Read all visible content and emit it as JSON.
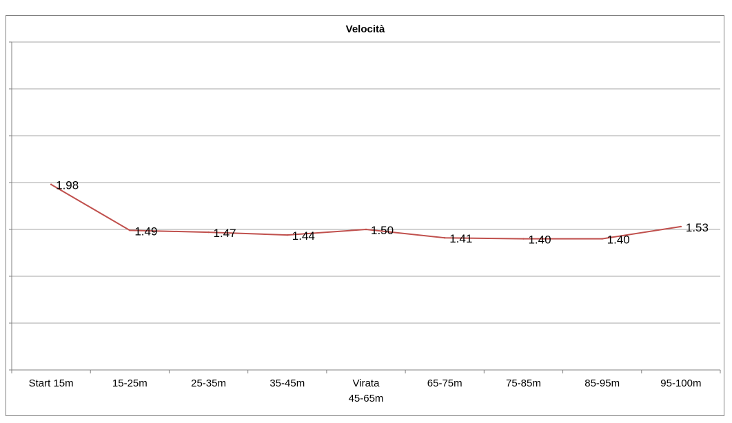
{
  "chart_data": {
    "type": "line",
    "title": "Velocità",
    "xlabel": "",
    "ylabel": "",
    "categories": [
      "Start 15m",
      "15-25m",
      "25-35m",
      "35-45m",
      "Virata\n45-65m",
      "65-75m",
      "75-85m",
      "85-95m",
      "95-100m"
    ],
    "series": [
      {
        "values": [
          1.98,
          1.49,
          1.47,
          1.44,
          1.5,
          1.41,
          1.4,
          1.4,
          1.53
        ],
        "labels": [
          "1.98",
          "1.49",
          "1.47",
          "1.44",
          "1.50",
          "1.41",
          "1.40",
          "1.40",
          "1.53"
        ],
        "color": "#c0504d"
      }
    ],
    "ylim": [
      0,
      3.5
    ],
    "ytick_step": 0.5,
    "grid": true,
    "legend": "none",
    "axis_color": "#808080",
    "grid_color": "#a6a6a6"
  }
}
